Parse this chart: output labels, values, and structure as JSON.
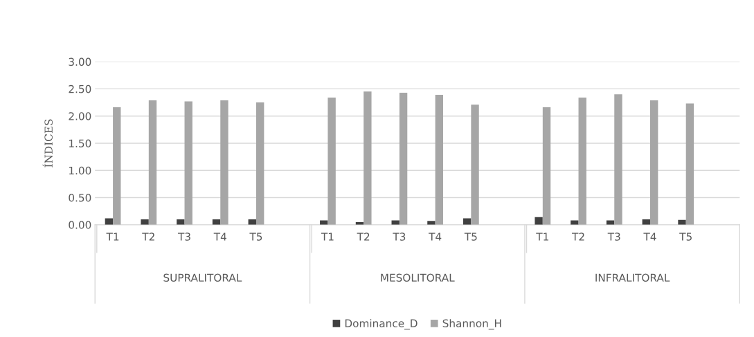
{
  "chart_data": {
    "type": "bar",
    "ylabel": "ÍNDICES",
    "categories": [
      "T1",
      "T2",
      "T3",
      "T4",
      "T5",
      null,
      "T1",
      "T2",
      "T3",
      "T4",
      "T5",
      null,
      "T1",
      "T2",
      "T3",
      "T4",
      "T5"
    ],
    "series": [
      {
        "name": "Dominance_D",
        "color": "#404040",
        "values": [
          0.12,
          0.1,
          0.1,
          0.1,
          0.1,
          null,
          0.08,
          0.05,
          0.08,
          0.07,
          0.12,
          null,
          0.14,
          0.08,
          0.08,
          0.1,
          0.09
        ]
      },
      {
        "name": "Shannon_H",
        "color": "#a6a6a6",
        "values": [
          2.16,
          2.29,
          2.27,
          2.29,
          2.25,
          null,
          2.34,
          2.45,
          2.43,
          2.39,
          2.21,
          null,
          2.16,
          2.34,
          2.4,
          2.29,
          2.23
        ]
      }
    ],
    "annotations": [
      "SUPRALITORAL",
      "MESOLITORAL",
      "INFRALITORAL"
    ],
    "ylim": [
      0,
      3
    ],
    "yticks": [
      {
        "value": 0,
        "label": "0.00"
      },
      {
        "value": 0.5,
        "label": "0.50"
      },
      {
        "value": 1,
        "label": "1.00"
      },
      {
        "value": 1.5,
        "label": "1.50"
      },
      {
        "value": 2,
        "label": "2.00"
      },
      {
        "value": 2.5,
        "label": "2.50"
      },
      {
        "value": 3,
        "label": "3.00"
      }
    ],
    "grid": "y",
    "legend": "bottom"
  }
}
